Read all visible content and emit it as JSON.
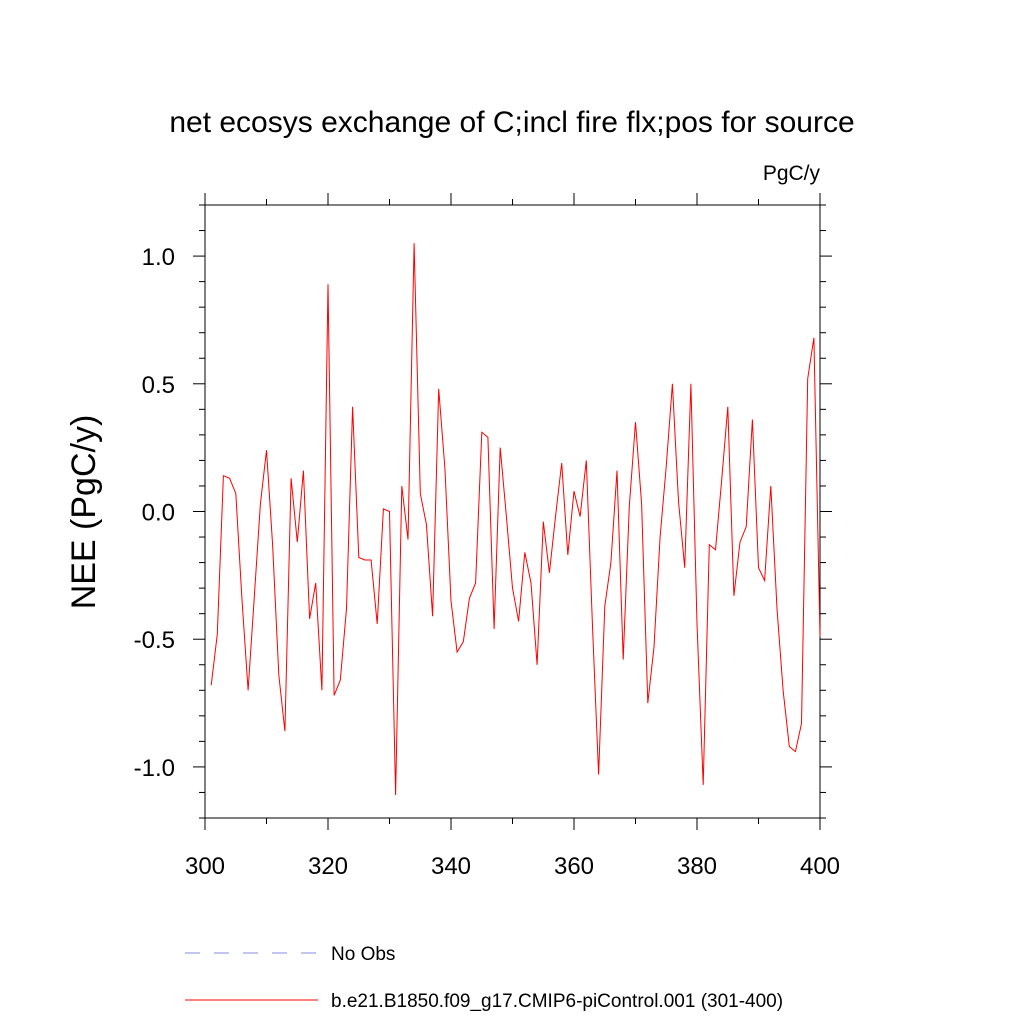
{
  "chart_data": {
    "type": "line",
    "title": "net ecosys exchange of C;incl fire flx;pos for source",
    "units": "PgC/y",
    "xlabel": "",
    "ylabel": "NEE  (PgC/y)",
    "xlim": [
      300,
      400
    ],
    "ylim": [
      -1.2,
      1.2
    ],
    "x_ticks": [
      "300",
      "320",
      "340",
      "360",
      "380",
      "400"
    ],
    "y_ticks": [
      "1.0",
      "0.5",
      "0.0",
      "-0.5",
      "-1.0"
    ],
    "grid": false,
    "legend_position": "bottom",
    "series": [
      {
        "name": "b.e21.B1850.f09_g17.CMIP6-piControl.001 (301-400)",
        "color": "#ff0000",
        "x": [
          301,
          302,
          303,
          304,
          305,
          306,
          307,
          308,
          309,
          310,
          311,
          312,
          313,
          314,
          315,
          316,
          317,
          318,
          319,
          320,
          321,
          322,
          323,
          324,
          325,
          326,
          327,
          328,
          329,
          330,
          331,
          332,
          333,
          334,
          335,
          336,
          337,
          338,
          339,
          340,
          341,
          342,
          343,
          344,
          345,
          346,
          347,
          348,
          349,
          350,
          351,
          352,
          353,
          354,
          355,
          356,
          357,
          358,
          359,
          360,
          361,
          362,
          363,
          364,
          365,
          366,
          367,
          368,
          369,
          370,
          371,
          372,
          373,
          374,
          375,
          376,
          377,
          378,
          379,
          380,
          381,
          382,
          383,
          384,
          385,
          386,
          387,
          388,
          389,
          390,
          391,
          392,
          393,
          394,
          395,
          396,
          397,
          398,
          399,
          400
        ],
        "y": [
          -0.68,
          -0.48,
          0.14,
          0.13,
          0.07,
          -0.34,
          -0.7,
          -0.34,
          0.03,
          0.24,
          -0.13,
          -0.64,
          -0.86,
          0.13,
          -0.12,
          0.16,
          -0.42,
          -0.28,
          -0.7,
          0.89,
          -0.72,
          -0.66,
          -0.38,
          0.41,
          -0.18,
          -0.19,
          -0.19,
          -0.44,
          0.01,
          0.0,
          -1.11,
          0.1,
          -0.11,
          1.05,
          0.07,
          -0.05,
          -0.41,
          0.48,
          0.17,
          -0.35,
          -0.55,
          -0.51,
          -0.34,
          -0.28,
          0.31,
          0.29,
          -0.46,
          0.25,
          -0.02,
          -0.3,
          -0.43,
          -0.16,
          -0.28,
          -0.6,
          -0.04,
          -0.24,
          -0.02,
          0.19,
          -0.17,
          0.08,
          -0.02,
          0.2,
          -0.45,
          -1.03,
          -0.37,
          -0.2,
          0.16,
          -0.58,
          0.02,
          0.35,
          0.03,
          -0.75,
          -0.53,
          -0.1,
          0.18,
          0.5,
          0.04,
          -0.22,
          0.5,
          -0.44,
          -1.07,
          -0.13,
          -0.15,
          0.12,
          0.41,
          -0.33,
          -0.12,
          -0.06,
          0.36,
          -0.22,
          -0.27,
          0.1,
          -0.38,
          -0.7,
          -0.92,
          -0.94,
          -0.83,
          0.52,
          0.68,
          -0.49
        ]
      }
    ],
    "legend": [
      {
        "label": "No Obs",
        "color": "#8a8ae6",
        "style": "dashed"
      },
      {
        "label": "b.e21.B1850.f09_g17.CMIP6-piControl.001 (301-400)",
        "color": "#ff0000",
        "style": "solid"
      }
    ]
  }
}
